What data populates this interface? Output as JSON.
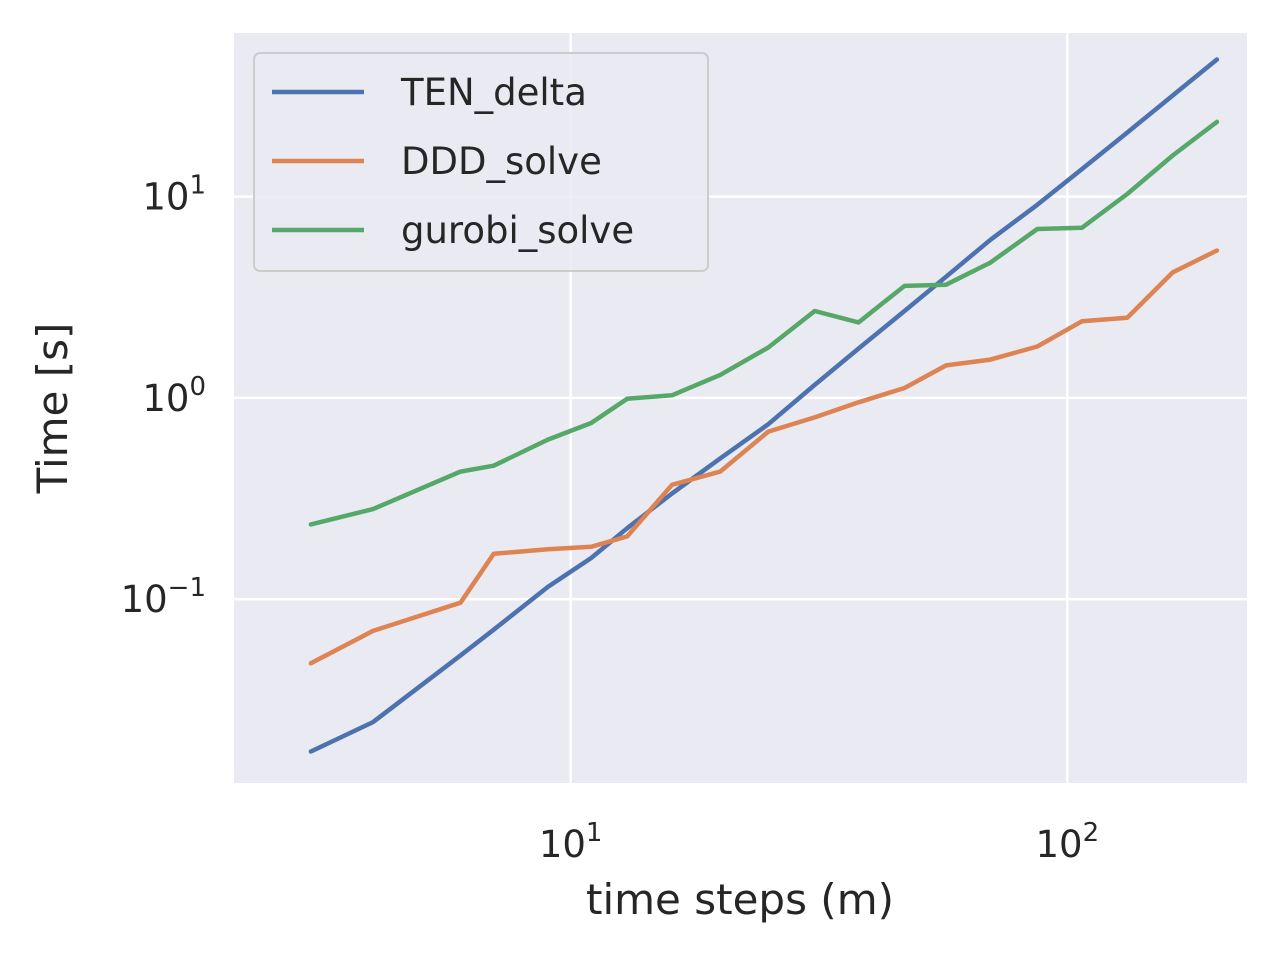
{
  "chart_data": {
    "type": "line",
    "title": "",
    "xlabel": "time steps (m)",
    "ylabel": "Time [s]",
    "xscale": "log",
    "yscale": "log",
    "xlim": [
      2.1,
      230
    ],
    "ylim": [
      0.0122,
      65
    ],
    "grid": true,
    "legend_position": "top-left",
    "x_ticks": [
      {
        "value": 10,
        "base": "10",
        "exp": "1"
      },
      {
        "value": 100,
        "base": "10",
        "exp": "2"
      }
    ],
    "y_ticks": [
      {
        "value": 0.1,
        "base": "10",
        "exp": "−1"
      },
      {
        "value": 1,
        "base": "10",
        "exp": "0"
      },
      {
        "value": 10,
        "base": "10",
        "exp": "1"
      }
    ],
    "x": [
      3,
      4,
      6,
      7,
      9,
      11,
      13,
      16,
      20,
      25,
      31,
      38,
      47,
      57,
      70,
      87,
      107,
      132,
      163,
      200
    ],
    "series": [
      {
        "name": "TEN_delta",
        "color": "#4C72B0",
        "values": [
          0.0175,
          0.0245,
          0.0525,
          0.0705,
          0.115,
          0.16,
          0.225,
          0.335,
          0.5,
          0.74,
          1.16,
          1.76,
          2.7,
          4.0,
          6.1,
          9.1,
          13.7,
          20.8,
          31.8,
          48.0
        ]
      },
      {
        "name": "DDD_solve",
        "color": "#DD8452",
        "values": [
          0.048,
          0.0695,
          0.096,
          0.168,
          0.177,
          0.182,
          0.205,
          0.37,
          0.43,
          0.68,
          0.8,
          0.95,
          1.12,
          1.45,
          1.55,
          1.8,
          2.4,
          2.5,
          4.2,
          5.4
        ]
      },
      {
        "name": "gurobi_solve",
        "color": "#55A868",
        "values": [
          0.235,
          0.28,
          0.43,
          0.46,
          0.62,
          0.75,
          0.99,
          1.03,
          1.3,
          1.78,
          2.7,
          2.37,
          3.6,
          3.65,
          4.7,
          6.9,
          7.0,
          10.3,
          16.0,
          23.5
        ]
      }
    ]
  }
}
